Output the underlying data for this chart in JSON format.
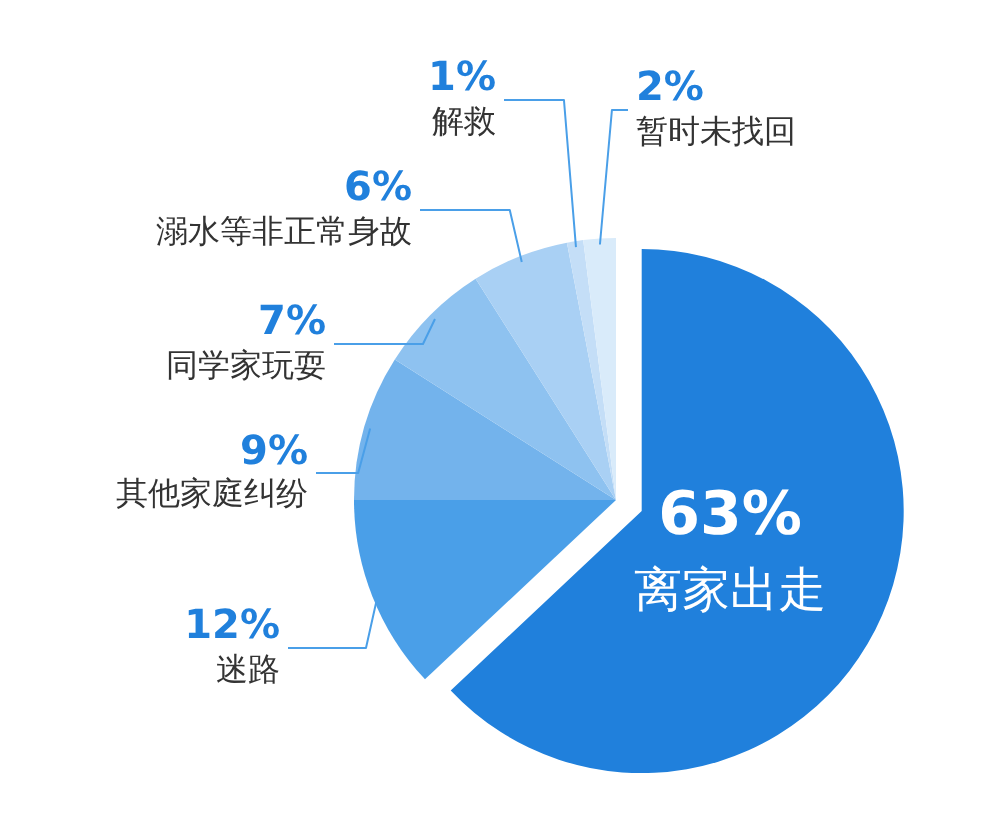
{
  "chart_data": {
    "type": "pie",
    "categories": [
      "离家出走",
      "迷路",
      "其他家庭纠纷",
      "同学家玩耍",
      "溺水等非正常身故",
      "解救",
      "暂时未找回"
    ],
    "values": [
      63,
      12,
      9,
      7,
      6,
      1,
      2
    ],
    "value_labels": [
      "63%",
      "12%",
      "9%",
      "7%",
      "6%",
      "1%",
      "2%"
    ],
    "colors": [
      "#2080dc",
      "#4a9fe8",
      "#73b3ec",
      "#8ec2f0",
      "#a9d0f4",
      "#c4def7",
      "#d9ebfa"
    ]
  }
}
